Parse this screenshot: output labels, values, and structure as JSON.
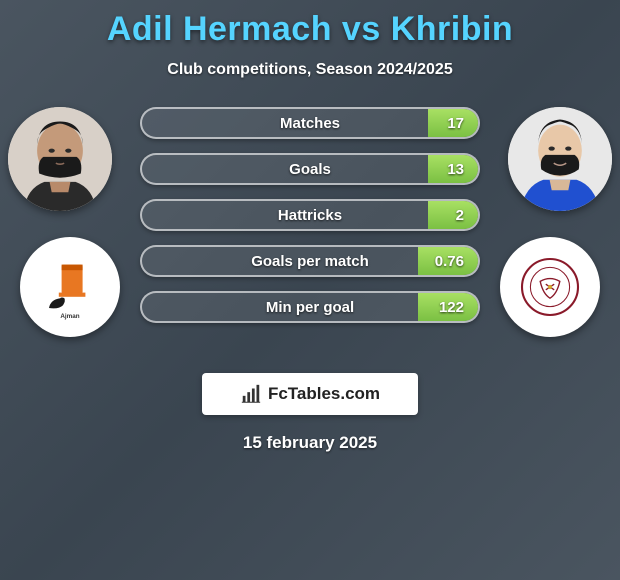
{
  "title": "Adil Hermach vs Khribin",
  "subtitle": "Club competitions, Season 2024/2025",
  "date": "15 february 2025",
  "logo_text": "FcTables.com",
  "colors": {
    "title": "#55d4ff",
    "text": "#ffffff",
    "bar_fill_start": "#a8e063",
    "bar_fill_end": "#7bc043",
    "bg": "#4a5560"
  },
  "stats": [
    {
      "label": "Matches",
      "right_value": "17",
      "right_fill_pct": 15
    },
    {
      "label": "Goals",
      "right_value": "13",
      "right_fill_pct": 15
    },
    {
      "label": "Hattricks",
      "right_value": "2",
      "right_fill_pct": 15
    },
    {
      "label": "Goals per match",
      "right_value": "0.76",
      "right_fill_pct": 18
    },
    {
      "label": "Min per goal",
      "right_value": "122",
      "right_fill_pct": 18
    }
  ],
  "players": {
    "left": {
      "name": "Adil Hermach",
      "club": "Ajman"
    },
    "right": {
      "name": "Khribin",
      "club": "Al Wahda"
    }
  }
}
